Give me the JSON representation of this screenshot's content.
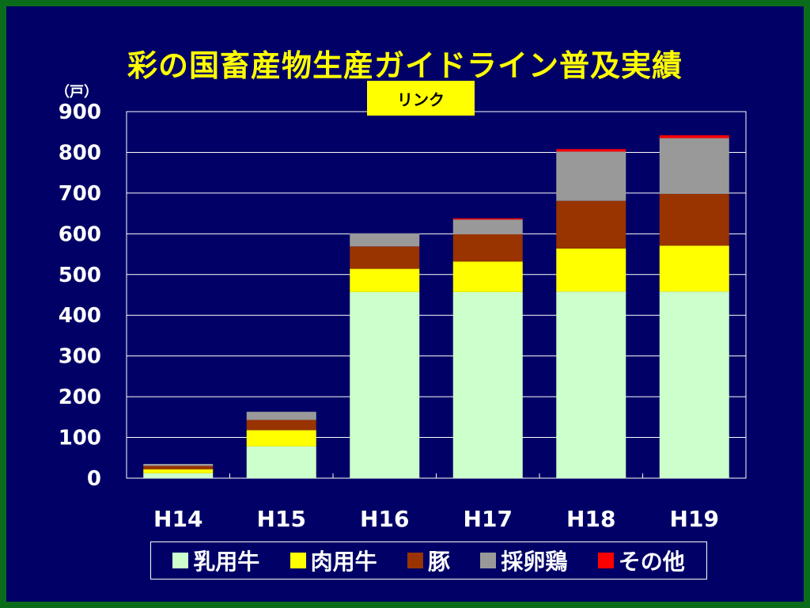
{
  "title": "彩の国畜産物生産ガイドライン普及実績",
  "unit_label": "（戸）",
  "link_button": "リンク",
  "chart_data": {
    "type": "bar",
    "stacked": true,
    "categories": [
      "H14",
      "H15",
      "H16",
      "H17",
      "H18",
      "H19"
    ],
    "series": [
      {
        "name": "乳用牛",
        "color": "#ccffcc",
        "values": [
          12,
          78,
          457,
          457,
          458,
          458
        ]
      },
      {
        "name": "肉用牛",
        "color": "#ffff00",
        "values": [
          10,
          40,
          57,
          75,
          106,
          113
        ]
      },
      {
        "name": "豚",
        "color": "#993300",
        "values": [
          8,
          25,
          55,
          67,
          117,
          127
        ]
      },
      {
        "name": "採卵鶏",
        "color": "#999999",
        "values": [
          5,
          20,
          32,
          36,
          121,
          137
        ]
      },
      {
        "name": "その他",
        "color": "#ff0000",
        "values": [
          0,
          0,
          0,
          3,
          6,
          7
        ]
      }
    ],
    "ylim": [
      0,
      900
    ],
    "yticks": [
      "0",
      "100",
      "200",
      "300",
      "400",
      "500",
      "600",
      "700",
      "800",
      "900"
    ],
    "grid": true,
    "legend_position": "bottom"
  }
}
